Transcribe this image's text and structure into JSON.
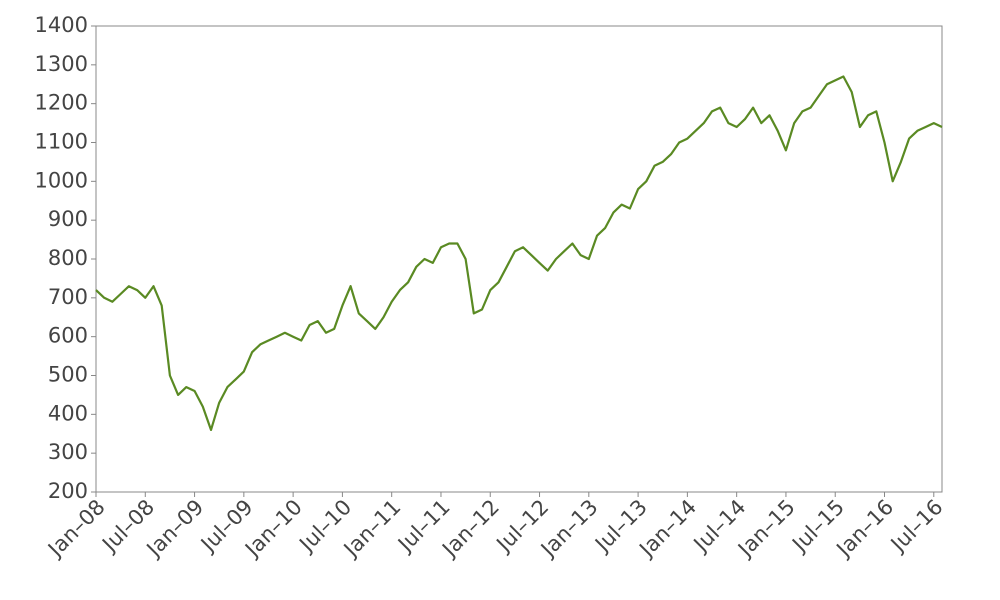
{
  "chart_data": {
    "type": "line",
    "x": [
      "2008-01",
      "2008-02",
      "2008-03",
      "2008-04",
      "2008-05",
      "2008-06",
      "2008-07",
      "2008-08",
      "2008-09",
      "2008-10",
      "2008-11",
      "2008-12",
      "2009-01",
      "2009-02",
      "2009-03",
      "2009-04",
      "2009-05",
      "2009-06",
      "2009-07",
      "2009-08",
      "2009-09",
      "2009-10",
      "2009-11",
      "2009-12",
      "2010-01",
      "2010-02",
      "2010-03",
      "2010-04",
      "2010-05",
      "2010-06",
      "2010-07",
      "2010-08",
      "2010-09",
      "2010-10",
      "2010-11",
      "2010-12",
      "2011-01",
      "2011-02",
      "2011-03",
      "2011-04",
      "2011-05",
      "2011-06",
      "2011-07",
      "2011-08",
      "2011-09",
      "2011-10",
      "2011-11",
      "2011-12",
      "2012-01",
      "2012-02",
      "2012-03",
      "2012-04",
      "2012-05",
      "2012-06",
      "2012-07",
      "2012-08",
      "2012-09",
      "2012-10",
      "2012-11",
      "2012-12",
      "2013-01",
      "2013-02",
      "2013-03",
      "2013-04",
      "2013-05",
      "2013-06",
      "2013-07",
      "2013-08",
      "2013-09",
      "2013-10",
      "2013-11",
      "2013-12",
      "2014-01",
      "2014-02",
      "2014-03",
      "2014-04",
      "2014-05",
      "2014-06",
      "2014-07",
      "2014-08",
      "2014-09",
      "2014-10",
      "2014-11",
      "2014-12",
      "2015-01",
      "2015-02",
      "2015-03",
      "2015-04",
      "2015-05",
      "2015-06",
      "2015-07",
      "2015-08",
      "2015-09",
      "2015-10",
      "2015-11",
      "2015-12",
      "2016-01",
      "2016-02",
      "2016-03",
      "2016-04",
      "2016-05",
      "2016-06",
      "2016-07",
      "2016-08"
    ],
    "series": [
      {
        "color": "#5a8a23",
        "values": [
          720,
          700,
          690,
          710,
          730,
          720,
          700,
          730,
          680,
          500,
          450,
          470,
          460,
          420,
          360,
          430,
          470,
          490,
          510,
          560,
          580,
          590,
          600,
          610,
          600,
          590,
          630,
          640,
          610,
          620,
          680,
          730,
          660,
          640,
          620,
          650,
          690,
          720,
          740,
          780,
          800,
          790,
          830,
          840,
          840,
          800,
          660,
          670,
          720,
          740,
          780,
          820,
          830,
          810,
          790,
          770,
          800,
          820,
          840,
          810,
          800,
          860,
          880,
          920,
          940,
          930,
          980,
          1000,
          1040,
          1050,
          1070,
          1100,
          1110,
          1130,
          1150,
          1180,
          1190,
          1150,
          1140,
          1160,
          1190,
          1150,
          1170,
          1130,
          1080,
          1150,
          1180,
          1190,
          1220,
          1250,
          1260,
          1270,
          1230,
          1140,
          1170,
          1180,
          1100,
          1000,
          1050,
          1110,
          1130,
          1140,
          1150,
          1140
        ]
      }
    ],
    "xlim": [
      "2008-01",
      "2016-08"
    ],
    "xticks": [
      {
        "value": "2008-01",
        "label": "Jan–08"
      },
      {
        "value": "2008-07",
        "label": "Jul–08"
      },
      {
        "value": "2009-01",
        "label": "Jan–09"
      },
      {
        "value": "2009-07",
        "label": "Jul–09"
      },
      {
        "value": "2010-01",
        "label": "Jan–10"
      },
      {
        "value": "2010-07",
        "label": "Jul–10"
      },
      {
        "value": "2011-01",
        "label": "Jan–11"
      },
      {
        "value": "2011-07",
        "label": "Jul–11"
      },
      {
        "value": "2012-01",
        "label": "Jan–12"
      },
      {
        "value": "2012-07",
        "label": "Jul–12"
      },
      {
        "value": "2013-01",
        "label": "Jan–13"
      },
      {
        "value": "2013-07",
        "label": "Jul–13"
      },
      {
        "value": "2014-01",
        "label": "Jan–14"
      },
      {
        "value": "2014-07",
        "label": "Jul–14"
      },
      {
        "value": "2015-01",
        "label": "Jan–15"
      },
      {
        "value": "2015-07",
        "label": "Jul–15"
      },
      {
        "value": "2016-01",
        "label": "Jan–16"
      },
      {
        "value": "2016-07",
        "label": "Jul–16"
      }
    ],
    "ylim": [
      200,
      1400
    ],
    "yticks": [
      200,
      300,
      400,
      500,
      600,
      700,
      800,
      900,
      1000,
      1100,
      1200,
      1300,
      1400
    ],
    "grid": false
  }
}
